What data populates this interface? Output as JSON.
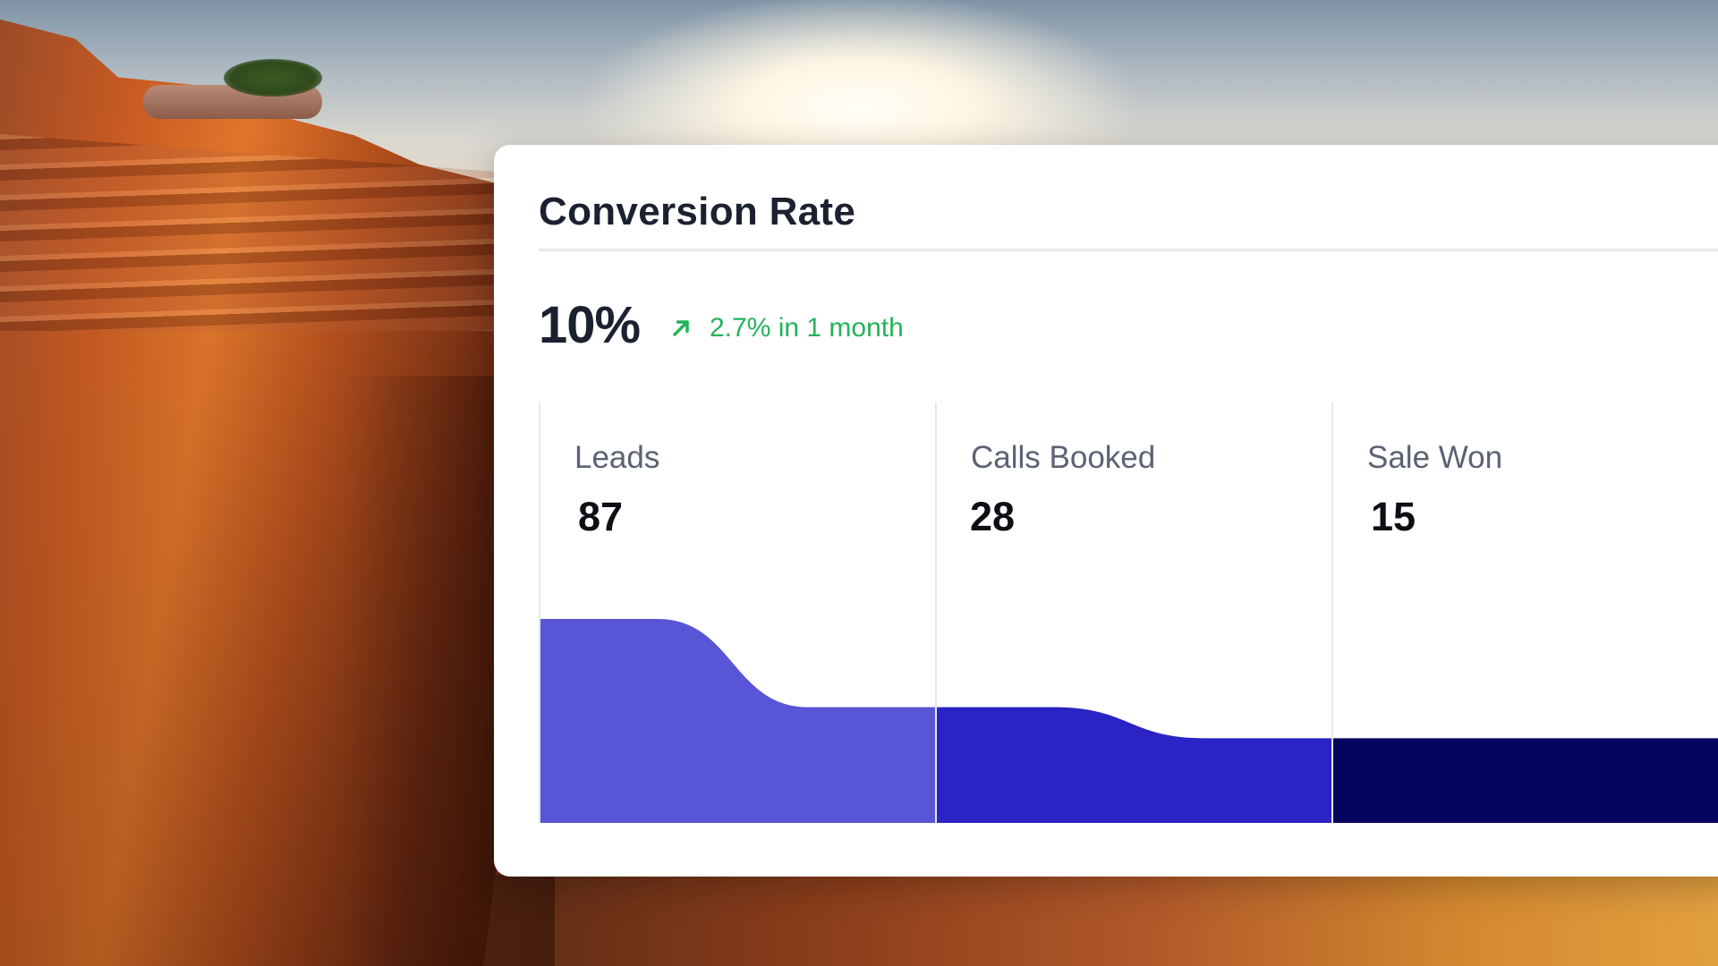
{
  "card": {
    "title": "Conversion Rate",
    "metric_value": "10%",
    "trend_icon": "arrow-up-right-icon",
    "trend_text": "2.7% in 1 month",
    "trend_color": "#22b45a"
  },
  "funnel": {
    "stages": [
      {
        "label": "Leads",
        "value": "87",
        "count": 87,
        "color": "#5855d6"
      },
      {
        "label": "Calls Booked",
        "value": "28",
        "count": 28,
        "color": "#2b24c4"
      },
      {
        "label": "Sale Won",
        "value": "15",
        "count": 15,
        "color": "#06055e"
      }
    ]
  }
}
